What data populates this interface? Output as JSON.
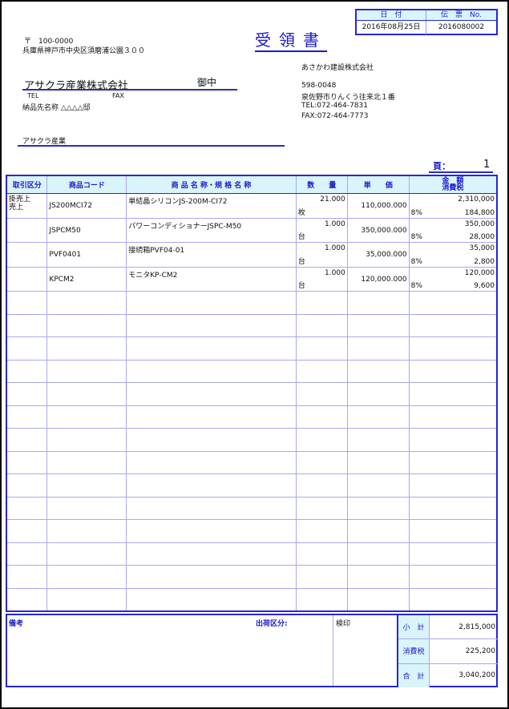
{
  "header": {
    "date_label": "日　付",
    "slip_label": "伝　票　No.",
    "date": "2016年08月25日",
    "slip_no": "2016080002",
    "title": "受領書"
  },
  "customer": {
    "postal": "〒　100-0000",
    "address": "兵庫県神戸市中央区須磨浦公園３００",
    "name": "アサクラ産業株式会社",
    "honorific": "御中",
    "tel_label": "TEL",
    "fax_label": "FAX",
    "delivery_label": "納品先名称",
    "delivery_name": "△△△△邸",
    "contact": "アサクラ産業"
  },
  "issuer": {
    "name": "あさかわ建設株式会社",
    "postal": "598-0048",
    "address": "泉佐野市りんくう往来北１番",
    "tel": "TEL:072-464-7831",
    "fax": "FAX:072-464-7773"
  },
  "page": {
    "label": "頁：",
    "number": "1"
  },
  "table": {
    "headers": [
      "取引区分",
      "商品コード",
      "商 品 名 称・規 格 名 称",
      "数　　量",
      "単　　価",
      "金　額",
      "消費税"
    ],
    "rows": [
      {
        "kubun": "掛売上\n売上",
        "code": "JS200MCI72",
        "name": "単結晶シリコンJS-200M-CI72",
        "qty": "21.000",
        "unit": "枚",
        "price": "110,000.000",
        "tax_rate": "8%",
        "amount": "2,310,000",
        "tax": "184,800"
      },
      {
        "kubun": "",
        "code": "JSPCM50",
        "name": "パワーコンディショナーJSPC-M50",
        "qty": "1.000",
        "unit": "台",
        "price": "350,000.000",
        "tax_rate": "8%",
        "amount": "350,000",
        "tax": "28,000"
      },
      {
        "kubun": "",
        "code": "PVF0401",
        "name": "接続箱PVF04-01",
        "qty": "1.000",
        "unit": "台",
        "price": "35,000.000",
        "tax_rate": "8%",
        "amount": "35,000",
        "tax": "2,800"
      },
      {
        "kubun": "",
        "code": "KPCM2",
        "name": "モニタKP-CM2",
        "qty": "1.000",
        "unit": "台",
        "price": "120,000.000",
        "tax_rate": "8%",
        "amount": "120,000",
        "tax": "9,600"
      }
    ]
  },
  "footer": {
    "remarks_label": "備考",
    "shipping_label": "出荷区分:",
    "inspection_label": "検印",
    "subtotal_label": "小　計",
    "subtotal": "2,815,000",
    "tax_label": "消費税",
    "tax": "225,200",
    "total_label": "合　計",
    "total": "3,040,200"
  },
  "colors": {
    "accent": "#1a1acc",
    "header_bg": "#d9f4fb"
  }
}
